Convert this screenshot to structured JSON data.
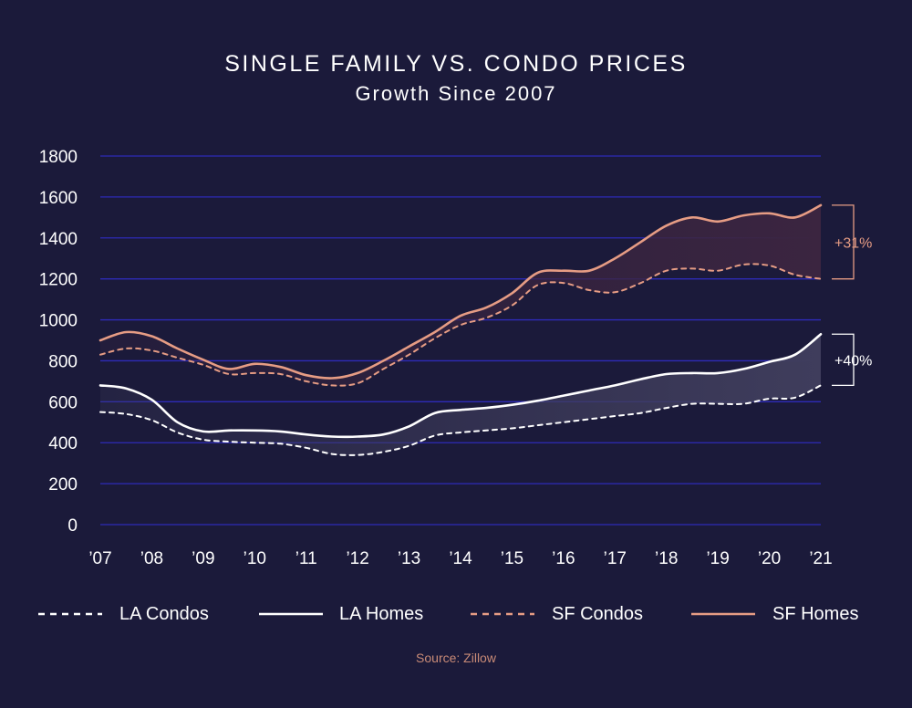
{
  "chart_data": {
    "type": "line",
    "title": "SINGLE FAMILY VS. CONDO PRICES",
    "subtitle": "Growth Since 2007",
    "ylim": [
      0,
      1800
    ],
    "yticks": [
      "0",
      "200",
      "400",
      "600",
      "800",
      "1000",
      "1200",
      "1400",
      "1600",
      "1800"
    ],
    "yticks_values": [
      0,
      200,
      400,
      600,
      800,
      1000,
      1200,
      1400,
      1600,
      1800
    ],
    "categories": [
      "’07",
      "’08",
      "’09",
      "’10",
      "’11",
      "’12",
      "’13",
      "’14",
      "’15",
      "’16",
      "’17",
      "’18",
      "’19",
      "’20",
      "’21"
    ],
    "x": [
      2007,
      2007.5,
      2008,
      2008.5,
      2009,
      2009.5,
      2010,
      2010.5,
      2011,
      2011.5,
      2012,
      2012.5,
      2013,
      2013.5,
      2014,
      2014.5,
      2015,
      2015.5,
      2016,
      2016.5,
      2017,
      2017.5,
      2018,
      2018.5,
      2019,
      2019.5,
      2020,
      2020.5,
      2021
    ],
    "series": [
      {
        "name": "LA Condos",
        "style": "dashed",
        "color": "#ffffff",
        "values": [
          550,
          540,
          510,
          450,
          415,
          405,
          400,
          395,
          375,
          345,
          340,
          355,
          385,
          435,
          450,
          460,
          470,
          485,
          500,
          515,
          530,
          545,
          570,
          590,
          590,
          590,
          615,
          620,
          680
        ]
      },
      {
        "name": "LA Homes",
        "style": "solid",
        "color": "#ffffff",
        "values": [
          680,
          665,
          610,
          500,
          455,
          460,
          460,
          455,
          440,
          430,
          430,
          440,
          480,
          545,
          560,
          570,
          585,
          605,
          630,
          655,
          680,
          710,
          735,
          740,
          740,
          760,
          795,
          830,
          930
        ]
      },
      {
        "name": "SF Condos",
        "style": "dashed",
        "color": "#e69c84",
        "values": [
          830,
          860,
          850,
          815,
          780,
          735,
          740,
          735,
          700,
          680,
          690,
          760,
          830,
          910,
          975,
          1010,
          1070,
          1170,
          1180,
          1145,
          1135,
          1180,
          1240,
          1250,
          1240,
          1270,
          1265,
          1220,
          1200
        ]
      },
      {
        "name": "SF Homes",
        "style": "solid",
        "color": "#e69c84",
        "values": [
          900,
          940,
          920,
          860,
          805,
          760,
          785,
          770,
          730,
          715,
          740,
          800,
          870,
          940,
          1020,
          1060,
          1130,
          1230,
          1240,
          1240,
          1300,
          1380,
          1460,
          1500,
          1480,
          1510,
          1520,
          1500,
          1560
        ]
      }
    ],
    "annotations": [
      {
        "label": "+31%",
        "between": [
          "SF Condos",
          "SF Homes"
        ],
        "color": "#e69c84"
      },
      {
        "label": "+40%",
        "between": [
          "LA Condos",
          "LA Homes"
        ],
        "color": "#ffffff"
      }
    ],
    "legend": [
      "LA Condos",
      "LA Homes",
      "SF Condos",
      "SF Homes"
    ],
    "legend_position": "bottom",
    "source": "Source: Zillow",
    "grid": true
  },
  "colors": {
    "background": "#1b1a3a",
    "grid": "#2e2bb8",
    "white": "#ffffff",
    "pink": "#e69c84",
    "sf_fill": "#3b2540",
    "la_fill": "#3f3d5c",
    "source": "#c98b77"
  }
}
